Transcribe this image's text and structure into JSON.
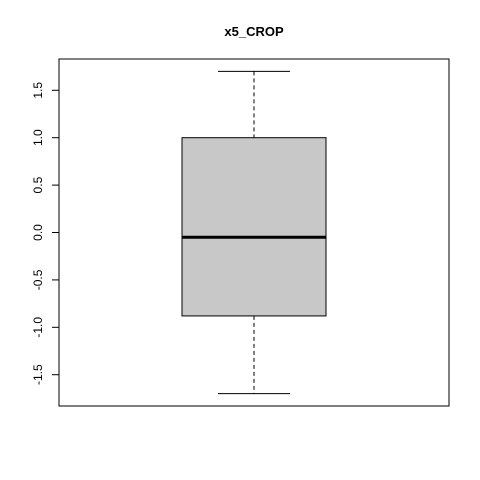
{
  "chart_data": {
    "type": "boxplot",
    "title": "x5_CROP",
    "xlabel": "",
    "ylabel": "",
    "ylim": [
      -1.83,
      1.83
    ],
    "y_ticks": [
      -1.5,
      -1.0,
      -0.5,
      0.0,
      0.5,
      1.0,
      1.5
    ],
    "y_tick_labels": [
      "-1.5",
      "-1.0",
      "-0.5",
      "0.0",
      "0.5",
      "1.0",
      "1.5"
    ],
    "grid": false,
    "box": {
      "min": -1.7,
      "q1": -0.88,
      "median": -0.05,
      "q3": 1.0,
      "max": 1.7
    },
    "colors": {
      "box_fill": "#c8c8c8",
      "stroke": "#000000"
    }
  }
}
